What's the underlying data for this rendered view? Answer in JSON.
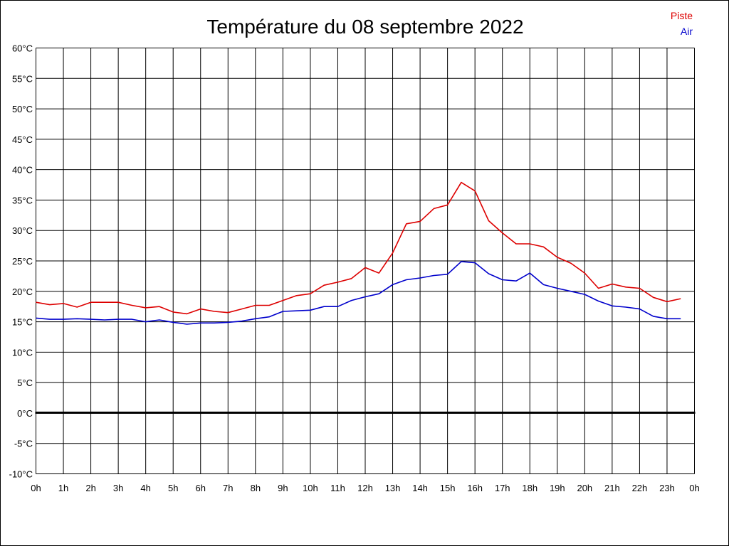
{
  "chart_data": {
    "type": "line",
    "title": "Température du 08 septembre 2022",
    "xlabel": "",
    "ylabel": "",
    "x_ticks": [
      "0h",
      "1h",
      "2h",
      "3h",
      "4h",
      "5h",
      "6h",
      "7h",
      "8h",
      "9h",
      "10h",
      "11h",
      "12h",
      "13h",
      "14h",
      "15h",
      "16h",
      "17h",
      "18h",
      "19h",
      "20h",
      "21h",
      "22h",
      "23h",
      "0h"
    ],
    "y_ticks": [
      "-10°C",
      "-5°C",
      "0°C",
      "5°C",
      "10°C",
      "15°C",
      "20°C",
      "25°C",
      "30°C",
      "35°C",
      "40°C",
      "45°C",
      "50°C",
      "55°C",
      "60°C"
    ],
    "xlim": [
      0,
      24
    ],
    "ylim": [
      -10,
      60
    ],
    "grid": true,
    "legend_position": "top-right",
    "zero_line": 0,
    "x": [
      0,
      0.5,
      1,
      1.5,
      2,
      2.5,
      3,
      3.5,
      4,
      4.5,
      5,
      5.5,
      6,
      6.5,
      7,
      7.5,
      8,
      8.5,
      9,
      9.5,
      10,
      10.5,
      11,
      11.5,
      12,
      12.5,
      13,
      13.5,
      14,
      14.5,
      15,
      15.5,
      16,
      16.5,
      17,
      17.5,
      18,
      18.5,
      19,
      19.5,
      20,
      20.5,
      21,
      21.5,
      22,
      22.5,
      23,
      23.5
    ],
    "series": [
      {
        "name": "Piste",
        "color": "#dd0000",
        "values": [
          18.2,
          17.8,
          18.0,
          17.4,
          18.2,
          18.2,
          18.2,
          17.7,
          17.3,
          17.5,
          16.6,
          16.3,
          17.1,
          16.7,
          16.5,
          17.1,
          17.7,
          17.7,
          18.5,
          19.3,
          19.6,
          21.0,
          21.5,
          22.1,
          23.9,
          23.0,
          26.3,
          31.1,
          31.5,
          33.6,
          34.2,
          37.9,
          36.5,
          31.6,
          29.6,
          27.8,
          27.8,
          27.3,
          25.6,
          24.6,
          23.0,
          20.5,
          21.2,
          20.7,
          20.5,
          19.0,
          18.3,
          18.8
        ]
      },
      {
        "name": "Air",
        "color": "#0000cc",
        "values": [
          15.6,
          15.4,
          15.4,
          15.5,
          15.4,
          15.3,
          15.4,
          15.4,
          15.0,
          15.3,
          14.9,
          14.6,
          14.8,
          14.8,
          14.9,
          15.1,
          15.5,
          15.8,
          16.7,
          16.8,
          16.9,
          17.5,
          17.5,
          18.5,
          19.1,
          19.6,
          21.1,
          21.9,
          22.2,
          22.6,
          22.8,
          24.9,
          24.7,
          22.9,
          21.9,
          21.7,
          23.0,
          21.1,
          20.5,
          20.0,
          19.5,
          18.4,
          17.6,
          17.4,
          17.1,
          15.9,
          15.5,
          15.5
        ]
      }
    ]
  }
}
